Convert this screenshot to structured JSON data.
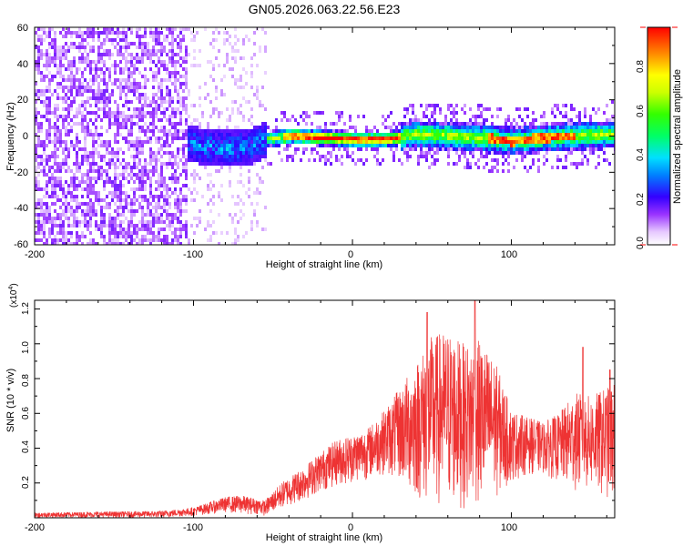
{
  "title": "GN05.2026.063.22.56.E23",
  "chart_data": [
    {
      "type": "heatmap",
      "title": "GN05.2026.063.22.56.E23",
      "xlabel": "Height of straight line (km)",
      "ylabel": "Frequency (Hz)",
      "xlim": [
        -200,
        165
      ],
      "ylim": [
        -60,
        60
      ],
      "x_ticks": [
        "-200",
        "-100",
        "0",
        "100"
      ],
      "y_ticks": [
        "60",
        "40",
        "20",
        "0",
        "-20",
        "-40",
        "-60"
      ],
      "colorbar": {
        "label": "Normalized spectral amplitude",
        "range": [
          0.0,
          1.0
        ],
        "ticks": [
          "0.8",
          "0.6",
          "0.4",
          "0.2",
          "0.0"
        ]
      },
      "ridge_center_hz": [
        {
          "x": -120,
          "y": -2
        },
        {
          "x": -100,
          "y": -4
        },
        {
          "x": -80,
          "y": -6
        },
        {
          "x": -65,
          "y": -5
        },
        {
          "x": -55,
          "y": -1
        },
        {
          "x": -40,
          "y": 1
        },
        {
          "x": -20,
          "y": 0
        },
        {
          "x": 0,
          "y": -1
        },
        {
          "x": 20,
          "y": -1
        },
        {
          "x": 40,
          "y": 2
        },
        {
          "x": 60,
          "y": 1
        },
        {
          "x": 80,
          "y": 0
        },
        {
          "x": 100,
          "y": -2
        },
        {
          "x": 120,
          "y": 0
        },
        {
          "x": 140,
          "y": 1
        },
        {
          "x": 165,
          "y": 2
        }
      ]
    },
    {
      "type": "line",
      "xlabel": "Height of straight line (km)",
      "ylabel": "SNR (10 * v/v)",
      "y_multiplier": "(x10",
      "y_multiplier_exp": "4",
      "y_multiplier_close": ")",
      "xlim": [
        -200,
        165
      ],
      "ylim": [
        0,
        1.25
      ],
      "x_ticks": [
        "-200",
        "-100",
        "0",
        "100"
      ],
      "y_ticks": [
        "1.2",
        "1.0",
        "0.8",
        "0.6",
        "0.4",
        "0.2"
      ],
      "series_color": "#ee3333",
      "envelope": {
        "x": [
          -200,
          -120,
          -100,
          -90,
          -80,
          -70,
          -60,
          -55,
          -45,
          -30,
          -20,
          -10,
          0,
          10,
          20,
          30,
          40,
          50,
          60,
          70,
          80,
          90,
          100,
          110,
          120,
          130,
          140,
          150,
          160,
          165
        ],
        "low": [
          0.0,
          0.0,
          0.01,
          0.02,
          0.03,
          0.02,
          0.02,
          0.01,
          0.05,
          0.1,
          0.15,
          0.18,
          0.2,
          0.22,
          0.25,
          0.2,
          0.1,
          0.05,
          0.05,
          0.05,
          0.05,
          0.1,
          0.2,
          0.25,
          0.25,
          0.2,
          0.15,
          0.15,
          0.1,
          0.1
        ],
        "high": [
          0.03,
          0.04,
          0.06,
          0.09,
          0.12,
          0.13,
          0.11,
          0.1,
          0.2,
          0.3,
          0.38,
          0.45,
          0.48,
          0.52,
          0.62,
          0.75,
          0.9,
          1.05,
          1.08,
          1.0,
          1.02,
          0.9,
          0.62,
          0.58,
          0.55,
          0.6,
          0.72,
          0.7,
          0.75,
          0.78
        ]
      },
      "peaks": [
        {
          "x": 47,
          "y": 1.18
        },
        {
          "x": 77,
          "y": 1.25
        },
        {
          "x": 145,
          "y": 0.98
        },
        {
          "x": 162,
          "y": 0.85
        }
      ]
    }
  ]
}
